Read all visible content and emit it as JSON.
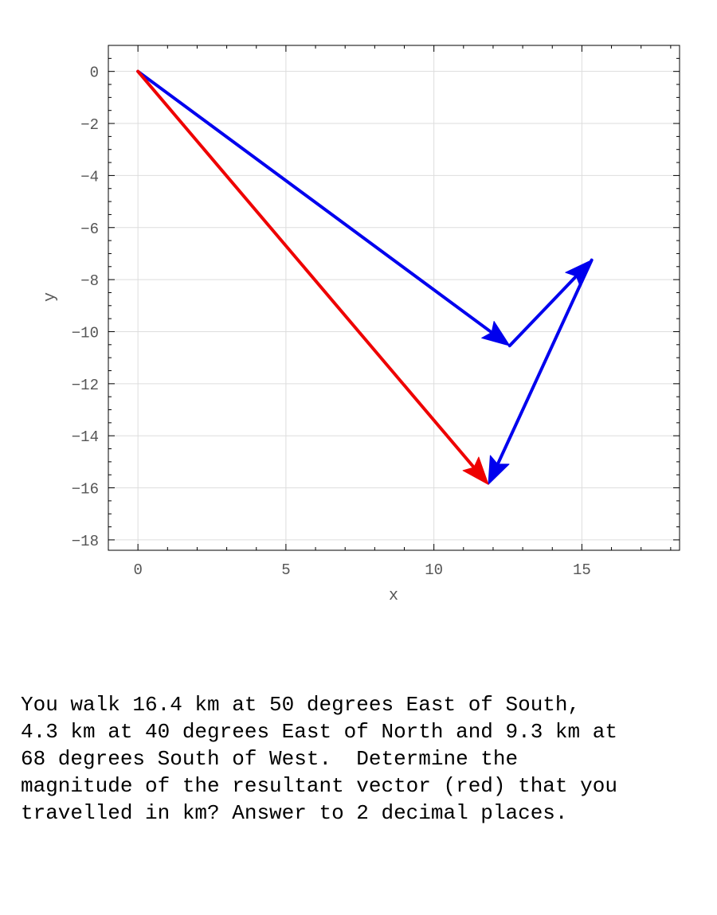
{
  "chart_data": {
    "type": "vector",
    "xlabel": "x",
    "ylabel": "y",
    "xlim": [
      -1,
      18.3
    ],
    "ylim": [
      -18.4,
      1
    ],
    "xticks": [
      "0",
      "5",
      "10",
      "15"
    ],
    "yticks": [
      "0",
      "-2",
      "-4",
      "-6",
      "-8",
      "-10",
      "-12",
      "-14",
      "-16",
      "-18"
    ],
    "grid": true,
    "vectors": [
      {
        "color": "#0000ee",
        "from": [
          0,
          0
        ],
        "to": [
          12.56,
          -10.54
        ]
      },
      {
        "color": "#0000ee",
        "from": [
          12.56,
          -10.54
        ],
        "to": [
          15.33,
          -7.25
        ]
      },
      {
        "color": "#0000ee",
        "from": [
          15.33,
          -7.25
        ],
        "to": [
          11.84,
          -15.87
        ]
      },
      {
        "color": "#ee0000",
        "from": [
          0,
          0
        ],
        "to": [
          11.84,
          -15.87
        ]
      }
    ]
  },
  "question": {
    "lines": [
      "You walk 16.4 km at 50 degrees East of South,",
      "4.3 km at 40 degrees East of North and 9.3 km at",
      "68 degrees South of West.  Determine the",
      "magnitude of the resultant vector (red) that you",
      "travelled in km? Answer to 2 decimal places."
    ]
  }
}
